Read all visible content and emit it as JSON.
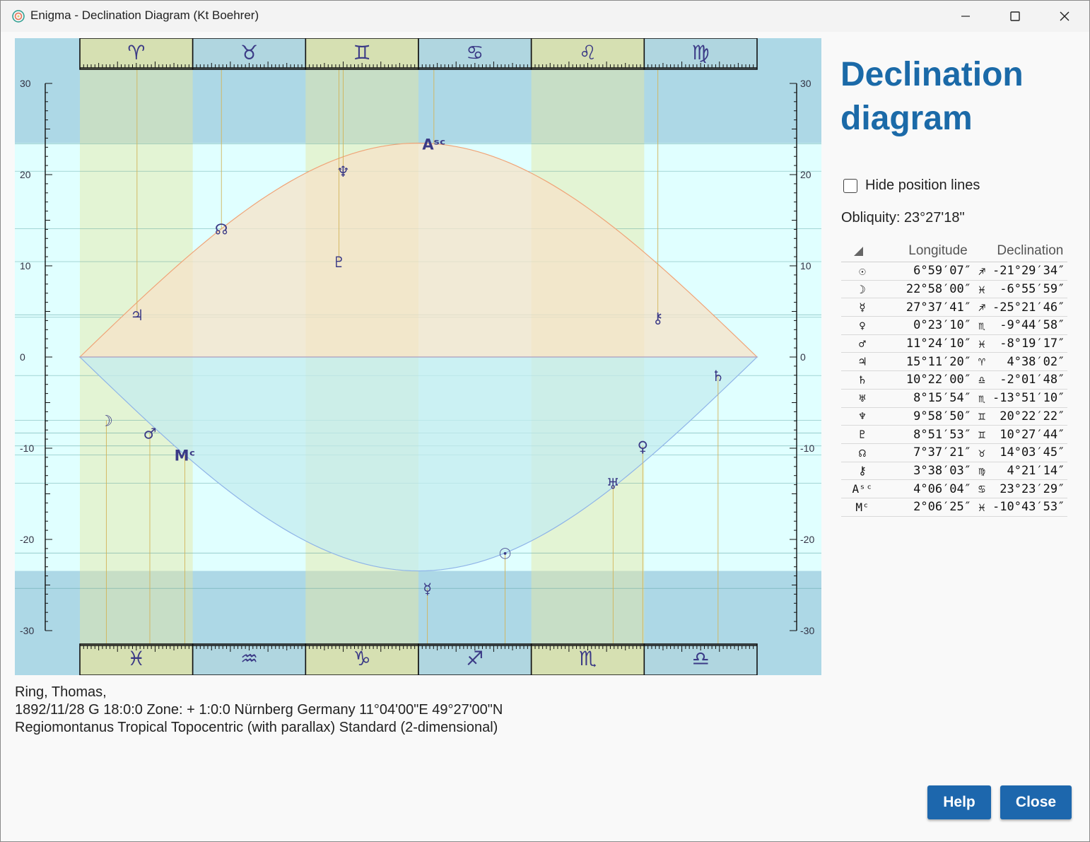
{
  "window": {
    "title": "Enigma - Declination Diagram (Kt Boehrer)",
    "minimize_icon": "minimize-icon",
    "maximize_icon": "maximize-icon",
    "close_icon": "close-icon"
  },
  "chart_data": {
    "type": "scatter",
    "ylim": [
      -30,
      30
    ],
    "yticks": [
      30,
      20,
      10,
      0,
      -10,
      -20,
      -30
    ],
    "obliquity": 23.455,
    "signs_top": [
      "♈",
      "♉",
      "♊",
      "♋",
      "♌",
      "♍"
    ],
    "signs_bottom": [
      "♓",
      "♒",
      "♑",
      "♐",
      "♏",
      "♎"
    ],
    "colors": {
      "band_outer": "#add8e6",
      "band_inner": "#e0ffff",
      "column_tint": "#e8f0c4",
      "north_fill": "#f7e3c8",
      "south_fill": "#c4ecef",
      "glyph": "#3b3a86"
    },
    "points": [
      {
        "glyph": "☉",
        "name": "Sun",
        "longitude": 246.985,
        "declination": -21.493
      },
      {
        "glyph": "☽",
        "name": "Moon",
        "longitude": 352.967,
        "declination": -6.933
      },
      {
        "glyph": "☿",
        "name": "Mercury",
        "longitude": 267.628,
        "declination": -25.363
      },
      {
        "glyph": "♀",
        "name": "Venus",
        "longitude": 210.386,
        "declination": -9.749
      },
      {
        "glyph": "♂",
        "name": "Mars",
        "longitude": 341.403,
        "declination": -8.321
      },
      {
        "glyph": "♃",
        "name": "Jupiter",
        "longitude": 15.189,
        "declination": 4.634
      },
      {
        "glyph": "♄",
        "name": "Saturn",
        "longitude": 190.367,
        "declination": -2.03
      },
      {
        "glyph": "♅",
        "name": "Uranus",
        "longitude": 218.265,
        "declination": -13.853
      },
      {
        "glyph": "♆",
        "name": "Neptune",
        "longitude": 69.981,
        "declination": 20.373
      },
      {
        "glyph": "♇",
        "name": "Pluto",
        "longitude": 68.865,
        "declination": 10.462
      },
      {
        "glyph": "☊",
        "name": "North Node",
        "longitude": 37.623,
        "declination": 14.063
      },
      {
        "glyph": "⚷",
        "name": "Chiron",
        "longitude": 153.634,
        "declination": 4.354
      },
      {
        "glyph": "Aˢᶜ",
        "name": "Ascendant",
        "longitude": 94.101,
        "declination": 23.391
      },
      {
        "glyph": "Mᶜ",
        "name": "Midheaven",
        "longitude": 332.107,
        "declination": -10.731
      }
    ]
  },
  "sidebar": {
    "title_line1": "Declination",
    "title_line2": "diagram",
    "hide_lines_label": "Hide position lines",
    "obliquity_label": "Obliquity: 23°27'18\"",
    "col_longitude": "Longitude",
    "col_declination": "Declination",
    "sort_icon": "sort-triangle-icon",
    "rows": [
      {
        "glyph": "☉",
        "longitude": "6°59′07″",
        "sign": "♐",
        "declination": "-21°29′34″"
      },
      {
        "glyph": "☽",
        "longitude": "22°58′00″",
        "sign": "♓",
        "declination": "-6°55′59″"
      },
      {
        "glyph": "☿",
        "longitude": "27°37′41″",
        "sign": "♐",
        "declination": "-25°21′46″"
      },
      {
        "glyph": "♀",
        "longitude": "0°23′10″",
        "sign": "♏",
        "declination": "-9°44′58″"
      },
      {
        "glyph": "♂",
        "longitude": "11°24′10″",
        "sign": "♓",
        "declination": "-8°19′17″"
      },
      {
        "glyph": "♃",
        "longitude": "15°11′20″",
        "sign": "♈",
        "declination": "4°38′02″"
      },
      {
        "glyph": "♄",
        "longitude": "10°22′00″",
        "sign": "♎",
        "declination": "-2°01′48″"
      },
      {
        "glyph": "♅",
        "longitude": "8°15′54″",
        "sign": "♏",
        "declination": "-13°51′10″"
      },
      {
        "glyph": "♆",
        "longitude": "9°58′50″",
        "sign": "♊",
        "declination": "20°22′22″"
      },
      {
        "glyph": "♇",
        "longitude": "8°51′53″",
        "sign": "♊",
        "declination": "10°27′44″"
      },
      {
        "glyph": "☊",
        "longitude": "7°37′21″",
        "sign": "♉",
        "declination": "14°03′45″"
      },
      {
        "glyph": "⚷",
        "longitude": "3°38′03″",
        "sign": "♍",
        "declination": "4°21′14″"
      },
      {
        "glyph": "Aˢᶜ",
        "longitude": "4°06′04″",
        "sign": "♋",
        "declination": "23°23′29″"
      },
      {
        "glyph": "Mᶜ",
        "longitude": "2°06′25″",
        "sign": "♓",
        "declination": "-10°43′53″"
      }
    ]
  },
  "info": {
    "line1": "Ring, Thomas,",
    "line2": "1892/11/28 G 18:0:0 Zone: + 1:0:0 Nürnberg Germany 11°04'00\"E 49°27'00\"N",
    "line3": "Regiomontanus Tropical Topocentric (with parallax) Standard (2-dimensional)"
  },
  "buttons": {
    "help": "Help",
    "close": "Close"
  }
}
